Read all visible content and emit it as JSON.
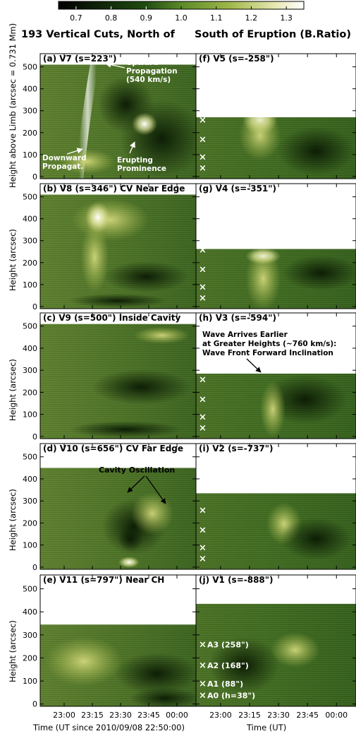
{
  "title_left": "193 Vertical Cuts, North of",
  "title_right": "South of Eruption (B.Ratio)",
  "colorbar": {
    "ticks": [
      "0.7",
      "0.8",
      "0.9",
      "1.0",
      "1.1",
      "1.2",
      "1.3"
    ],
    "range": [
      0.65,
      1.35
    ]
  },
  "yaxis_top": "Height above Limb (arcsec = 0.731 Mm)",
  "yaxis_other": "Height (arcsec)",
  "y_ticks": [
    "0",
    "100",
    "200",
    "300",
    "400",
    "500"
  ],
  "x_ticks": [
    "23:00",
    "23:15",
    "23:30",
    "23:45",
    "00:00"
  ],
  "xlabel_left": "Time (UT since 2010/09/08 22:50:00)",
  "xlabel_right": "Time (UT)",
  "panels_left": [
    {
      "label": "(a) V7 (s=223\")",
      "data_top": 510
    },
    {
      "label": "(b) V8 (s=346\") CV Near Edge",
      "data_top": 510
    },
    {
      "label": "(c) V9 (s=500\") Inside Cavity",
      "data_top": 510
    },
    {
      "label": "(d) V10 (s=656\") CV Far Edge",
      "data_top": 450
    },
    {
      "label": "(e) V11 (s=797\") Near CH",
      "data_top": 345
    }
  ],
  "panels_right": [
    {
      "label": "(f) V5 (s=-258\")",
      "data_top": 270
    },
    {
      "label": "(g) V4 (s=-351\")",
      "data_top": 262
    },
    {
      "label": "(h) V3 (s=-594\")",
      "data_top": 285
    },
    {
      "label": "(i) V2 (s=-737\")",
      "data_top": 335
    },
    {
      "label": "(j) V1 (s=-888\")",
      "data_top": 435
    }
  ],
  "annotations": {
    "upward": [
      "Upward",
      "Propagation",
      "(540 km/s)"
    ],
    "downward": [
      "Downward",
      "Propagat."
    ],
    "erupting": [
      "Erupting",
      "Prominence"
    ],
    "wave": [
      "Wave Arrives Earlier",
      "at Greater Heights (~760 km/s):",
      "Wave Front Forward Inclination"
    ],
    "cavity": "Cavity Oscillation"
  },
  "markers": [
    {
      "label": "A0 (h=38\")",
      "h": 38
    },
    {
      "label": "A1 (88\")",
      "h": 88
    },
    {
      "label": "A2 (168\")",
      "h": 168
    },
    {
      "label": "A3 (258\")",
      "h": 258
    }
  ],
  "chart_data": {
    "type": "heatmap",
    "colorbar_range": [
      0.65,
      1.35
    ],
    "y_range": [
      -10,
      560
    ],
    "x_ticks": [
      "23:00",
      "23:15",
      "23:30",
      "23:45",
      "00:00"
    ]
  }
}
